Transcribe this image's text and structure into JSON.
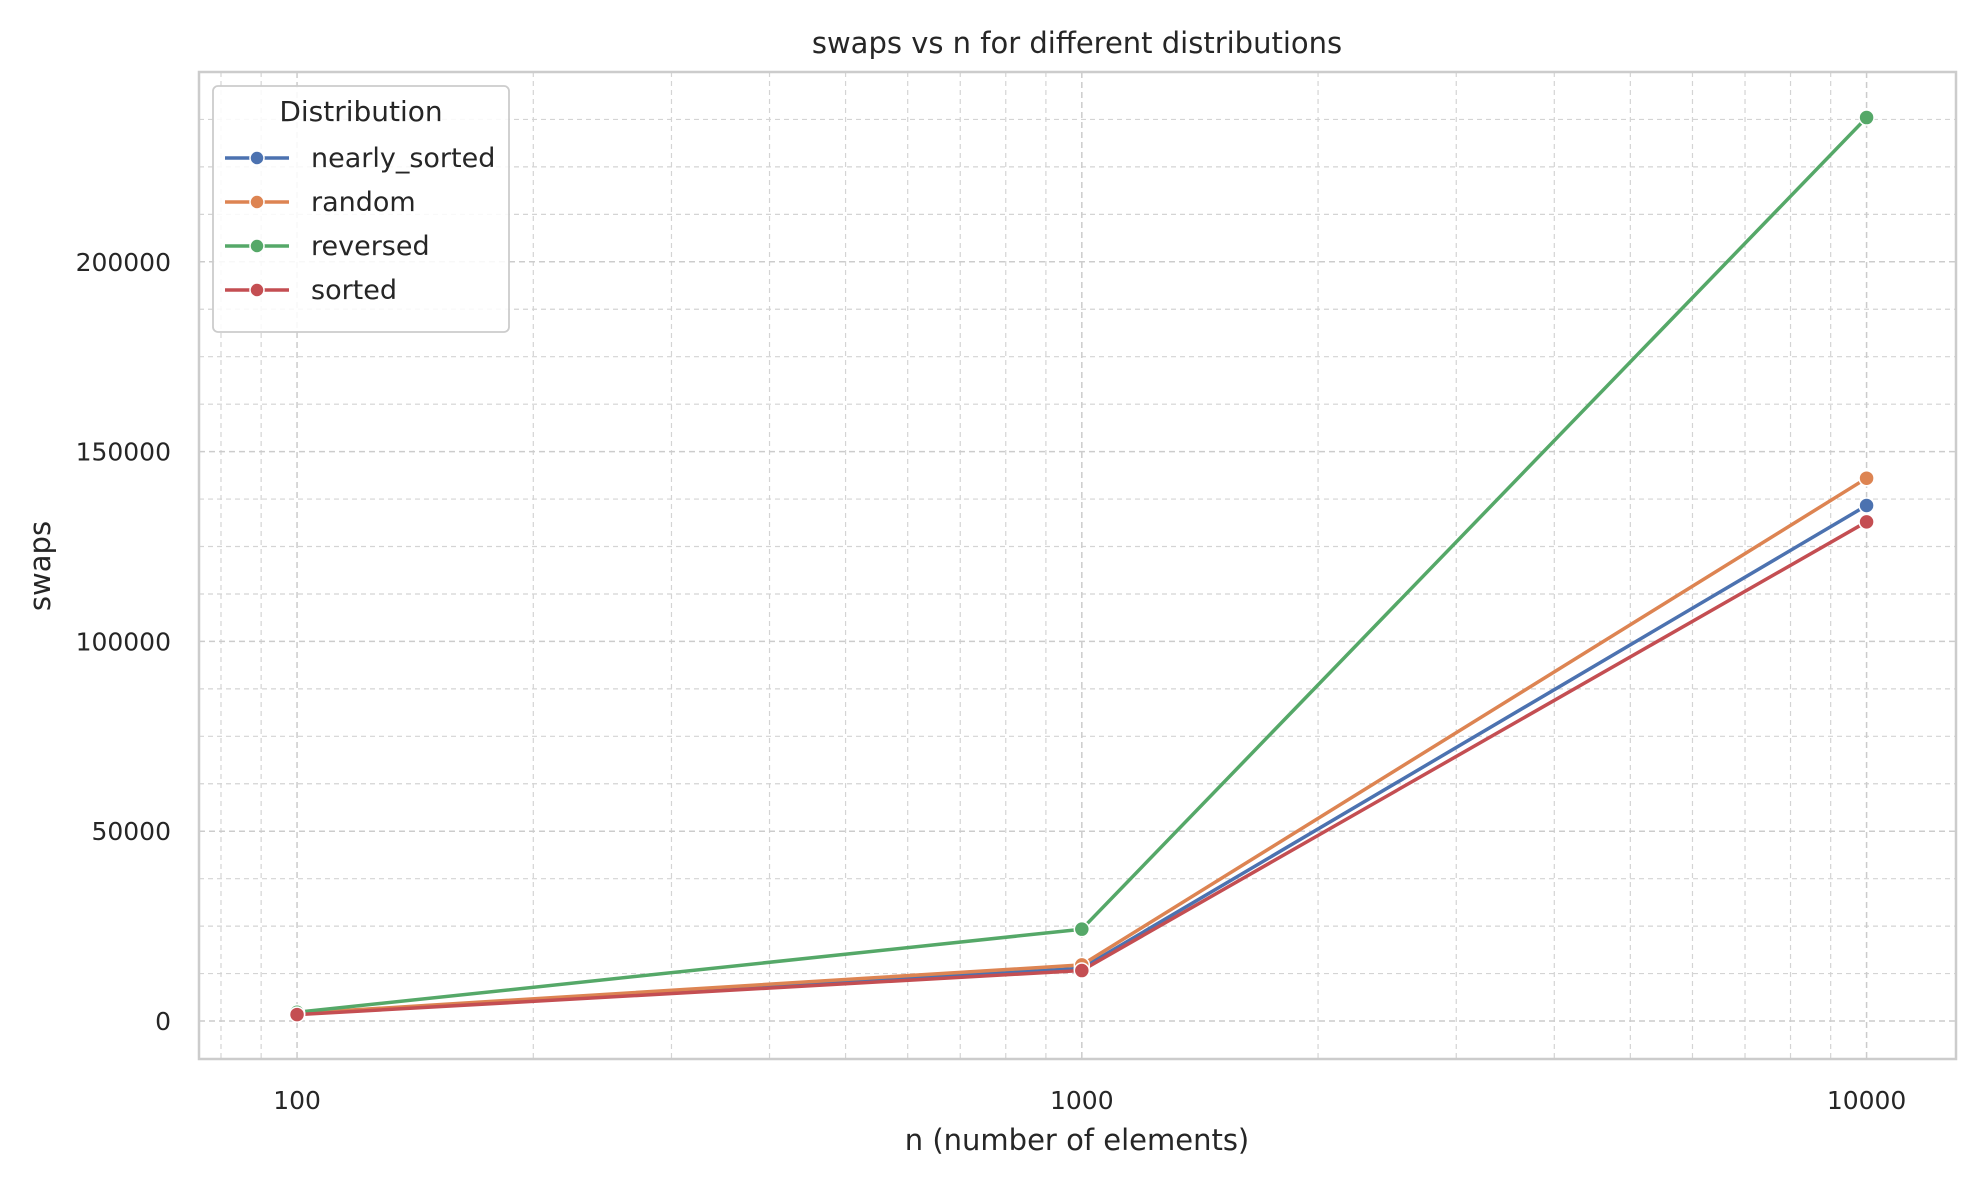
{
  "chart_data": {
    "type": "line",
    "title": "swaps vs n for different distributions",
    "xlabel": "n (number of elements)",
    "ylabel": "swaps",
    "xscale": "log",
    "x": [
      100,
      1000,
      10000
    ],
    "xlim": [
      75,
      13000
    ],
    "ylim": [
      -10000,
      250000
    ],
    "x_ticks": [
      "100",
      "1000",
      "10000"
    ],
    "y_ticks": [
      "0",
      "50000",
      "100000",
      "150000",
      "200000"
    ],
    "y_tick_values": [
      0,
      50000,
      100000,
      150000,
      200000
    ],
    "grid": true,
    "legend": {
      "title": "Distribution",
      "position": "top-left"
    },
    "series": [
      {
        "name": "nearly_sorted",
        "color": "#4c72b0",
        "values": [
          1800,
          13900,
          135800
        ]
      },
      {
        "name": "random",
        "color": "#dd8452",
        "values": [
          2000,
          14800,
          143000
        ]
      },
      {
        "name": "reversed",
        "color": "#55a868",
        "values": [
          2300,
          24200,
          238000
        ]
      },
      {
        "name": "sorted",
        "color": "#c44e52",
        "values": [
          1700,
          13300,
          131500
        ]
      }
    ]
  }
}
